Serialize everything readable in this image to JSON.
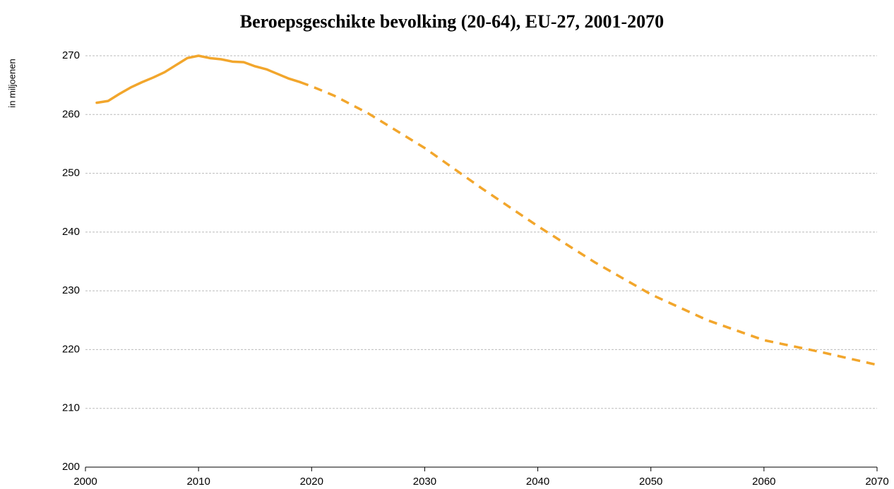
{
  "chart_data": {
    "type": "line",
    "title": "Beroepsgeschikte bevolking (20-64), EU-27, 2001-2070",
    "y_label": "in miljoenen",
    "series": [
      {
        "color": "#f2a62c",
        "line_style": "solid",
        "x": [
          2001,
          2002,
          2003,
          2004,
          2005,
          2006,
          2007,
          2008,
          2009,
          2010,
          2011,
          2012,
          2013,
          2014,
          2015,
          2016,
          2017,
          2018,
          2019
        ],
        "values": [
          262.0,
          262.3,
          263.5,
          264.6,
          265.5,
          266.3,
          267.2,
          268.4,
          269.6,
          270.0,
          269.6,
          269.4,
          269.0,
          268.9,
          268.2,
          267.7,
          266.9,
          266.1,
          265.5
        ]
      },
      {
        "color": "#f2a62c",
        "line_style": "dashed",
        "x": [
          2019,
          2020,
          2022,
          2025,
          2030,
          2035,
          2040,
          2045,
          2050,
          2055,
          2060,
          2065,
          2070
        ],
        "values": [
          265.5,
          264.8,
          263.2,
          260.2,
          254.3,
          247.5,
          241.0,
          234.9,
          229.4,
          225.0,
          221.6,
          219.6,
          217.4
        ]
      }
    ],
    "xlim": [
      2000,
      2070
    ],
    "xticks": [
      2000,
      2010,
      2020,
      2030,
      2040,
      2050,
      2060,
      2070
    ],
    "ylim": [
      200,
      270
    ],
    "yticks": [
      200,
      210,
      220,
      230,
      240,
      250,
      260,
      270
    ],
    "grid": true
  }
}
